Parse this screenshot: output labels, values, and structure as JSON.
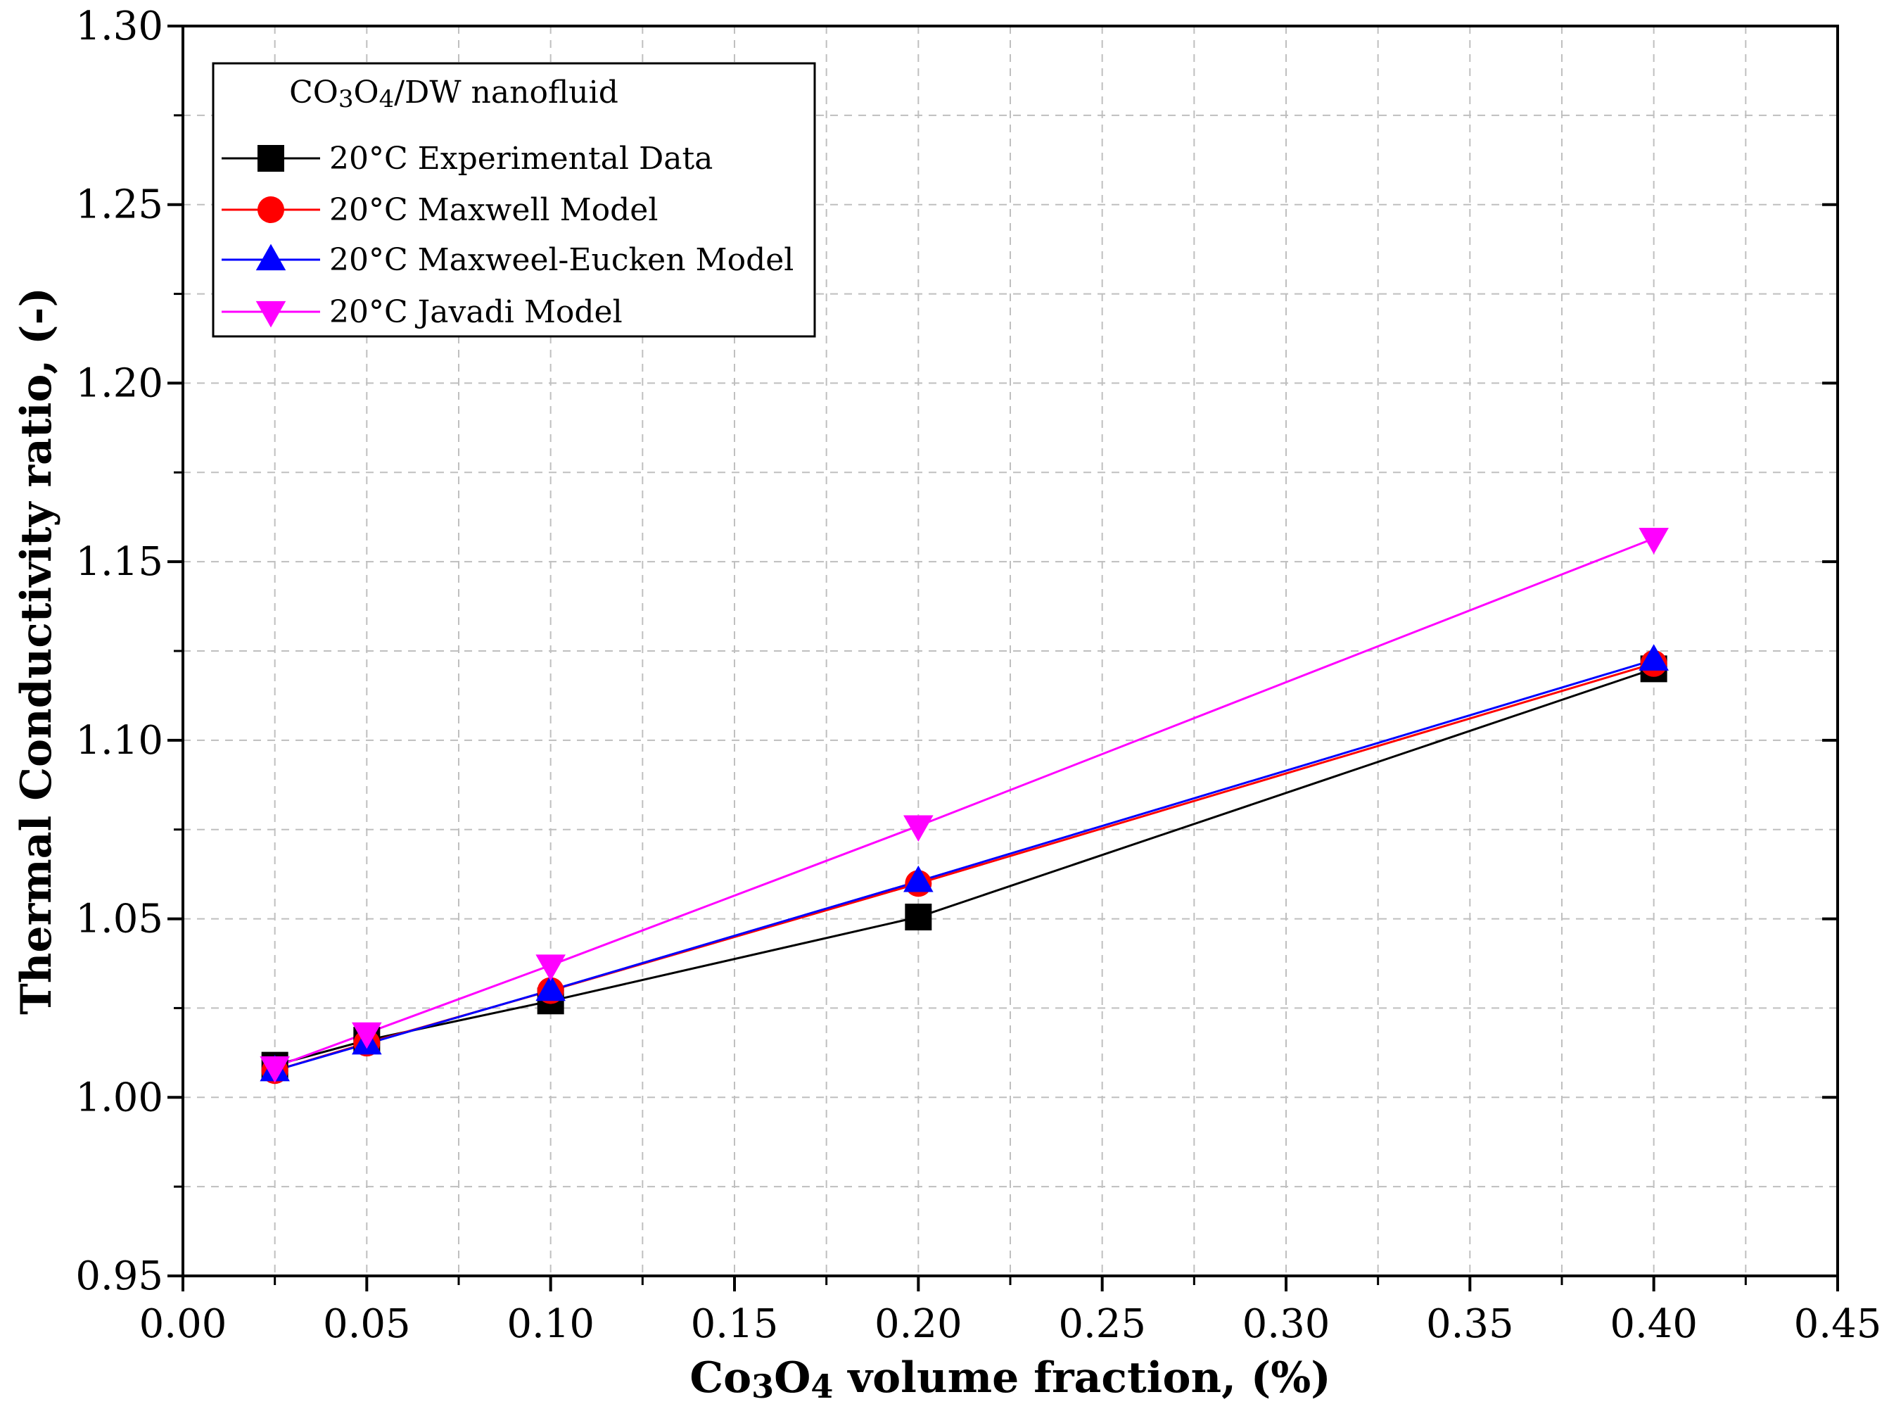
{
  "chart_data": {
    "type": "line",
    "title": "",
    "xlabel": "Co3O4 volume fraction, (%)",
    "xlabel_parts": {
      "a": "Co",
      "sub1": "3",
      "b": "O",
      "sub2": "4",
      "rest": " volume fraction, (%)"
    },
    "ylabel": "Thermal Conductivity ratio, (-)",
    "xlim": [
      0.0,
      0.45
    ],
    "ylim": [
      0.95,
      1.3
    ],
    "x_ticks": [
      0.0,
      0.05,
      0.1,
      0.15,
      0.2,
      0.25,
      0.3,
      0.35,
      0.4,
      0.45
    ],
    "x_tick_labels": [
      "0.00",
      "0.05",
      "0.10",
      "0.15",
      "0.20",
      "0.25",
      "0.30",
      "0.35",
      "0.40",
      "0.45"
    ],
    "y_ticks": [
      0.95,
      1.0,
      1.05,
      1.1,
      1.15,
      1.2,
      1.25,
      1.3
    ],
    "y_tick_labels": [
      "0.95",
      "1.00",
      "1.05",
      "1.10",
      "1.15",
      "1.20",
      "1.25",
      "1.30"
    ],
    "grid": true,
    "legend": {
      "title": "CO3O4/DW nanofluid",
      "title_parts": {
        "a": "CO",
        "sub1": "3",
        "b": "O",
        "sub2": "4",
        "rest": "/DW nanofluid"
      },
      "placement": "top-left"
    },
    "series": [
      {
        "name": "20°C Experimental Data",
        "color": "#000000",
        "marker": "square",
        "x": [
          0.025,
          0.05,
          0.1,
          0.2,
          0.4
        ],
        "values": [
          1.009,
          1.016,
          1.027,
          1.0505,
          1.12
        ]
      },
      {
        "name": "20°C Maxwell Model",
        "color": "#ff0000",
        "marker": "circle",
        "x": [
          0.025,
          0.05,
          0.1,
          0.2,
          0.4
        ],
        "values": [
          1.0075,
          1.0152,
          1.0299,
          1.0599,
          1.1215
        ]
      },
      {
        "name": "20°C Maxweel-Eucken Model",
        "color": "#0000ff",
        "marker": "triangle-up",
        "x": [
          0.025,
          0.05,
          0.1,
          0.2,
          0.4
        ],
        "values": [
          1.0075,
          1.015,
          1.03,
          1.0605,
          1.1225
        ]
      },
      {
        "name": "20°C Javadi Model",
        "color": "#ff00ff",
        "marker": "triangle-down",
        "x": [
          0.025,
          0.05,
          0.1,
          0.2,
          0.4
        ],
        "values": [
          1.0085,
          1.018,
          1.037,
          1.076,
          1.1565
        ]
      }
    ]
  }
}
